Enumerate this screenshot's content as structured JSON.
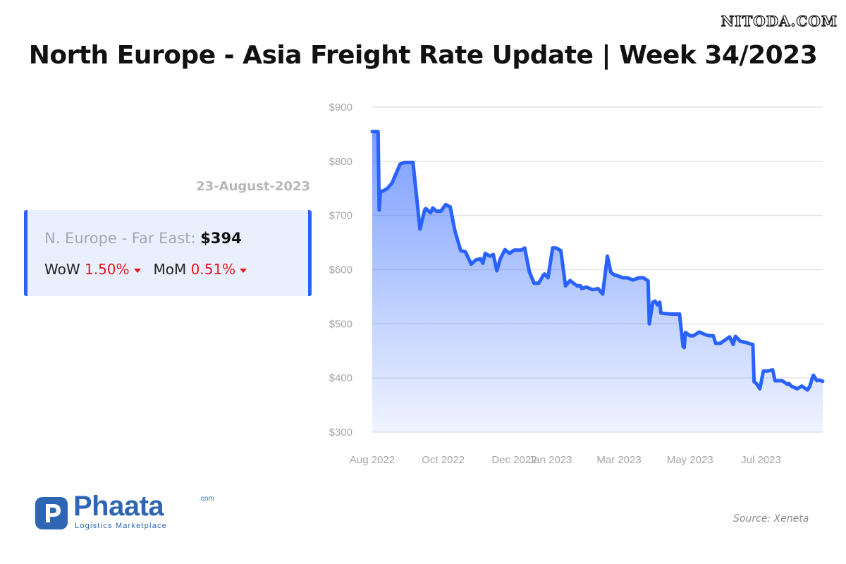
{
  "watermark": "NITODA.COM",
  "title": "North Europe - Asia Freight Rate Update | Week 34/2023",
  "date_label": "23-August-2023",
  "card": {
    "route_label": "N. Europe - Far East:",
    "route_value": "$394",
    "wow_label": "WoW",
    "wow_value": "1.50%",
    "mom_label": "MoM",
    "mom_value": "0.51%"
  },
  "brand": {
    "name": "Phaata",
    "tld": ".com",
    "tagline": "Logistics Marketplace"
  },
  "source": "Source: Xeneta",
  "colors": {
    "line": "#2962ff",
    "accent": "#2962ff",
    "change_down": "#e8161b",
    "brand": "#2f66b3"
  },
  "chart_data": {
    "type": "area",
    "x_unit": "date",
    "ylim": [
      300,
      900
    ],
    "yticks": [
      900,
      800,
      700,
      600,
      500,
      400,
      300
    ],
    "ytick_labels": [
      "$900",
      "$800",
      "$700",
      "$600",
      "$500",
      "$400",
      "$300"
    ],
    "xticks": [
      "2022-08-01",
      "2022-10-01",
      "2022-12-01",
      "2023-01-01",
      "2023-03-01",
      "2023-05-01",
      "2023-07-01"
    ],
    "xtick_labels": [
      "Aug 2022",
      "Oct 2022",
      "Dec 2022",
      "Jan 2023",
      "Mar 2023",
      "May 2023",
      "Jul 2023"
    ],
    "grid": true,
    "series": [
      {
        "x": [
          "2022-08-01",
          "2022-08-06",
          "2022-08-07",
          "2022-08-08",
          "2022-08-10",
          "2022-08-14",
          "2022-08-18",
          "2022-08-21",
          "2022-08-25",
          "2022-08-29",
          "2022-09-01",
          "2022-09-05",
          "2022-09-11",
          "2022-09-15",
          "2022-09-16",
          "2022-09-20",
          "2022-09-22",
          "2022-09-25",
          "2022-09-29",
          "2022-10-03",
          "2022-10-07",
          "2022-10-11",
          "2022-10-16",
          "2022-10-20",
          "2022-10-24",
          "2022-10-25",
          "2022-10-29",
          "2022-11-02",
          "2022-11-04",
          "2022-11-06",
          "2022-11-10",
          "2022-11-13",
          "2022-11-16",
          "2022-11-19",
          "2022-11-23",
          "2022-11-27",
          "2022-11-30",
          "2022-12-01",
          "2022-12-03",
          "2022-12-05",
          "2022-12-07",
          "2022-12-10",
          "2022-12-14",
          "2022-12-18",
          "2022-12-22",
          "2022-12-26",
          "2022-12-27",
          "2022-12-30",
          "2023-01-03",
          "2023-01-06",
          "2023-01-10",
          "2023-01-14",
          "2023-01-18",
          "2023-01-19",
          "2023-01-24",
          "2023-01-27",
          "2023-01-28",
          "2023-02-01",
          "2023-02-06",
          "2023-02-11",
          "2023-02-15",
          "2023-02-19",
          "2023-02-22",
          "2023-02-25",
          "2023-02-26",
          "2023-03-02",
          "2023-03-04",
          "2023-03-08",
          "2023-03-13",
          "2023-03-18",
          "2023-03-22",
          "2023-03-26",
          "2023-03-27",
          "2023-03-30",
          "2023-04-01",
          "2023-04-03",
          "2023-04-05",
          "2023-04-06",
          "2023-04-09",
          "2023-04-16",
          "2023-04-22",
          "2023-04-25",
          "2023-04-26",
          "2023-04-27",
          "2023-05-01",
          "2023-05-04",
          "2023-05-09",
          "2023-05-14",
          "2023-05-18",
          "2023-05-21",
          "2023-05-23",
          "2023-05-27",
          "2023-06-04",
          "2023-06-07",
          "2023-06-09",
          "2023-06-13",
          "2023-06-19",
          "2023-06-23",
          "2023-06-24",
          "2023-06-25",
          "2023-06-27",
          "2023-06-30",
          "2023-07-03",
          "2023-07-07",
          "2023-07-11",
          "2023-07-13",
          "2023-07-15",
          "2023-07-19",
          "2023-07-24",
          "2023-07-25",
          "2023-07-27",
          "2023-08-01",
          "2023-08-05",
          "2023-08-10",
          "2023-08-12",
          "2023-08-14",
          "2023-08-15",
          "2023-08-18",
          "2023-08-20",
          "2023-08-23"
        ],
        "values": [
          855,
          855,
          710,
          745,
          745,
          750,
          760,
          775,
          795,
          798,
          798,
          798,
          675,
          710,
          713,
          705,
          714,
          708,
          708,
          720,
          716,
          672,
          635,
          633,
          615,
          610,
          618,
          620,
          612,
          630,
          625,
          628,
          598,
          620,
          637,
          630,
          635,
          636,
          636,
          636,
          636,
          640,
          596,
          575,
          575,
          590,
          592,
          585,
          640,
          640,
          635,
          570,
          580,
          578,
          570,
          570,
          565,
          568,
          563,
          565,
          555,
          625,
          595,
          590,
          590,
          587,
          585,
          585,
          581,
          585,
          585,
          579,
          500,
          540,
          542,
          535,
          540,
          520,
          519,
          518,
          518,
          458,
          456,
          484,
          478,
          478,
          485,
          480,
          478,
          478,
          464,
          464,
          476,
          462,
          477,
          468,
          465,
          462,
          462,
          393,
          390,
          380,
          413,
          413,
          415,
          395,
          395,
          395,
          388,
          390,
          385,
          380,
          385,
          378,
          385,
          400,
          405,
          395,
          396,
          394
        ]
      }
    ]
  }
}
